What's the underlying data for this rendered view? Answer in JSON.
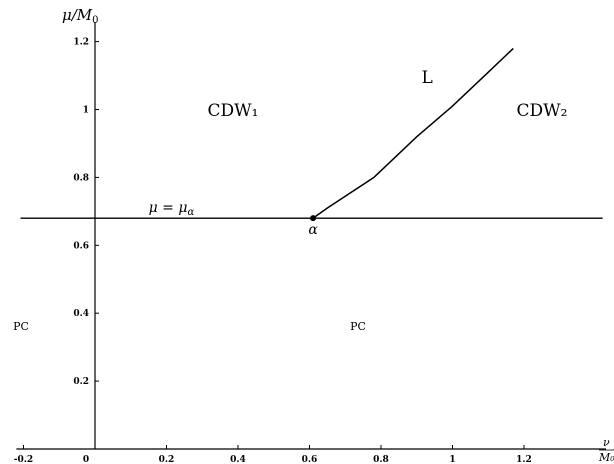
{
  "chart_data": {
    "type": "line",
    "title": "",
    "ylabel": "μ/M₀",
    "xlabel": "ν/M₀",
    "xlim": [
      -0.22,
      1.45
    ],
    "ylim": [
      0,
      1.27
    ],
    "x_ticks": [
      {
        "value": -0.2,
        "label": "-0.2"
      },
      {
        "value": 0,
        "label": "0"
      },
      {
        "value": 0.2,
        "label": "0.2"
      },
      {
        "value": 0.4,
        "label": "0.4"
      },
      {
        "value": 0.6,
        "label": "0.6"
      },
      {
        "value": 0.8,
        "label": "0.8"
      },
      {
        "value": 1.0,
        "label": "1"
      },
      {
        "value": 1.2,
        "label": "1.2"
      }
    ],
    "y_ticks": [
      {
        "value": 0.2,
        "label": "0.2"
      },
      {
        "value": 0.4,
        "label": "0.4"
      },
      {
        "value": 0.6,
        "label": "0.6"
      },
      {
        "value": 0.8,
        "label": "0.8"
      },
      {
        "value": 1.0,
        "label": "1"
      },
      {
        "value": 1.2,
        "label": "1.2"
      }
    ],
    "series": [
      {
        "name": "L",
        "x": [
          0.61,
          0.65,
          0.78,
          0.9,
          1.0,
          1.1,
          1.17
        ],
        "y": [
          0.68,
          0.71,
          0.8,
          0.92,
          1.01,
          1.11,
          1.18
        ]
      }
    ],
    "hline": {
      "y": 0.68,
      "label": "μ = μ_α",
      "xrange": [
        -0.2,
        1.42
      ]
    },
    "point": {
      "x": 0.61,
      "y": 0.68,
      "label": "α"
    },
    "regions": [
      {
        "label": "CDW₁",
        "x": 0.39,
        "y": 1.0
      },
      {
        "label": "CDW₂",
        "x": 1.25,
        "y": 1.0
      },
      {
        "label": "PC",
        "x": -0.2,
        "y": 0.33
      },
      {
        "label": "PC",
        "x": 0.74,
        "y": 0.33
      }
    ],
    "grid": false
  }
}
